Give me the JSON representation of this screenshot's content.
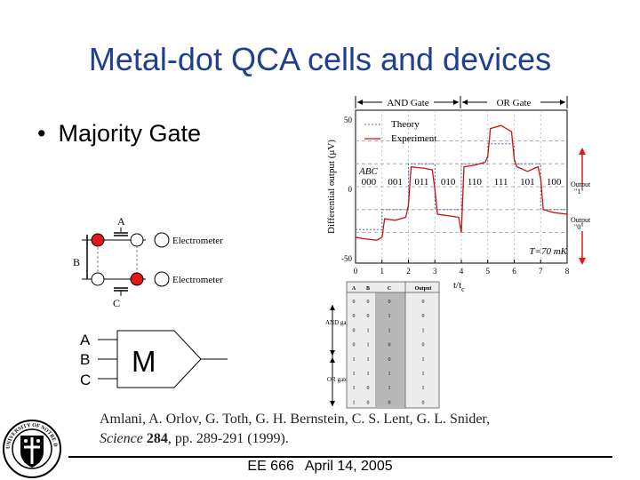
{
  "slide": {
    "title": "Metal-dot QCA cells and devices",
    "bullet": "Majority Gate"
  },
  "qca_cell": {
    "labels": {
      "a": "A",
      "b": "B",
      "c": "C"
    },
    "electrometer_1": "Electrometer",
    "electrometer_2": "Electrometer",
    "dot_color": "#e01818"
  },
  "majority_gate": {
    "inputs": [
      "A",
      "B",
      "C"
    ],
    "symbol": "M"
  },
  "chart_data": {
    "type": "line",
    "title": "",
    "xlabel": "t/t",
    "xlabel_sub": "c",
    "ylabel": "Differential output (μV)",
    "xlim": [
      0,
      8
    ],
    "ylim": [
      -50,
      50
    ],
    "x_ticks": [
      "0",
      "1",
      "2",
      "3",
      "4",
      "5",
      "6",
      "7",
      "8"
    ],
    "y_ticks": [
      "50",
      "0",
      "-50"
    ],
    "gate_bracket_left": "AND Gate",
    "gate_bracket_right": "OR Gate",
    "abc_header": "ABC",
    "abc_states": [
      "000",
      "001",
      "011",
      "010",
      "110",
      "111",
      "101",
      "100"
    ],
    "temperature": "T=70 mK",
    "output_high": [
      "Output",
      "\"1\""
    ],
    "output_low": [
      "Output",
      "\"0\""
    ],
    "legend": [
      "Theory",
      "Experiment"
    ],
    "series": [
      {
        "name": "Theory",
        "color": "#5566aa",
        "x": [
          0,
          1,
          1,
          2,
          2,
          3,
          3,
          4,
          4,
          5,
          5,
          6,
          6,
          7,
          7,
          8
        ],
        "y": [
          -28,
          -28,
          -15,
          -15,
          15,
          15,
          -15,
          -15,
          15,
          15,
          28,
          28,
          15,
          15,
          -15,
          -15
        ]
      },
      {
        "name": "Experiment",
        "color": "#cc1111",
        "x": [
          0,
          0.3,
          0.8,
          1.0,
          1.1,
          1.5,
          1.9,
          2.0,
          2.1,
          2.6,
          2.9,
          3.0,
          3.1,
          3.5,
          3.9,
          4.0,
          4.1,
          4.5,
          4.9,
          5.0,
          5.1,
          5.5,
          5.9,
          6.0,
          6.1,
          6.5,
          6.9,
          7.0,
          7.1,
          7.5,
          8.0
        ],
        "y": [
          -33,
          -34,
          -35,
          -33,
          -21,
          -22,
          -20,
          -12,
          13,
          12,
          11,
          -2,
          -18,
          -19,
          -20,
          -30,
          13,
          14,
          16,
          20,
          38,
          40,
          36,
          18,
          13,
          10,
          13,
          5,
          -15,
          -17,
          -18
        ]
      }
    ]
  },
  "truth_table": {
    "headers": [
      "A",
      "B",
      "C",
      "Output"
    ],
    "rows": [
      [
        "0",
        "0",
        "0",
        "0"
      ],
      [
        "0",
        "0",
        "1",
        "0"
      ],
      [
        "0",
        "1",
        "1",
        "1"
      ],
      [
        "0",
        "1",
        "0",
        "0"
      ],
      [
        "1",
        "1",
        "0",
        "1"
      ],
      [
        "1",
        "1",
        "1",
        "1"
      ],
      [
        "1",
        "0",
        "1",
        "1"
      ],
      [
        "1",
        "0",
        "0",
        "0"
      ]
    ],
    "and_label": "AND gate",
    "or_label": "OR gate"
  },
  "citation": {
    "authors": "Amlani, A. Orlov, G. Toth, G. H. Bernstein, C. S. Lent, G. L. Snider,",
    "journal": "Science",
    "volume": "284",
    "rest": ", pp. 289-291 (1999)."
  },
  "footer": {
    "course": "EE 666",
    "date": "April 14, 2005"
  },
  "logo": {
    "text": "UNIVERSITY OF NOTRE DAME"
  }
}
